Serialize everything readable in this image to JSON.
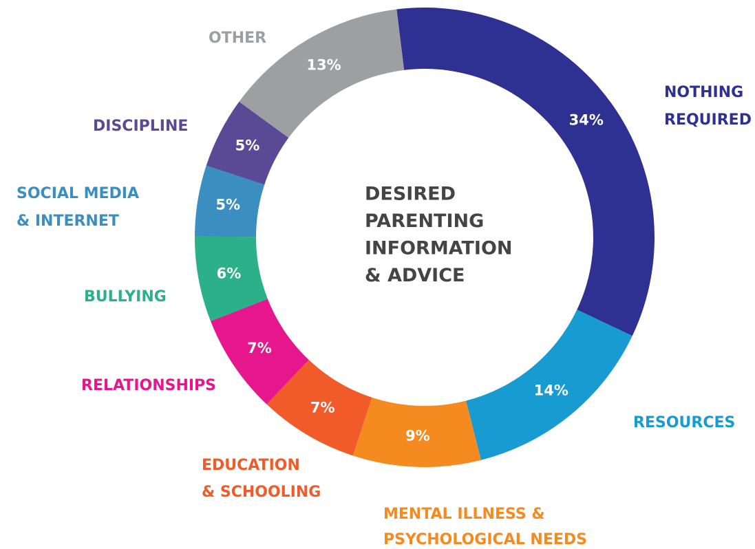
{
  "chart_data": {
    "type": "donut",
    "title": [
      "DESIRED",
      "PARENTING",
      "INFORMATION",
      "& ADVICE"
    ],
    "categories": [
      [
        "NOTHING",
        "REQUIRED"
      ],
      [
        "RESOURCES"
      ],
      [
        "MENTAL ILLNESS &",
        "PSYCHOLOGICAL NEEDS"
      ],
      [
        "EDUCATION",
        "& SCHOOLING"
      ],
      [
        "RELATIONSHIPS"
      ],
      [
        "BULLYING"
      ],
      [
        "SOCIAL MEDIA",
        "& INTERNET"
      ],
      [
        "DISCIPLINE"
      ],
      [
        "OTHER"
      ]
    ],
    "values": [
      34,
      14,
      9,
      7,
      7,
      6,
      5,
      5,
      13
    ],
    "value_labels": [
      "34%",
      "14%",
      "9%",
      "7%",
      "7%",
      "6%",
      "5%",
      "5%",
      "13%"
    ],
    "colors": [
      "#2e3192",
      "#179bd1",
      "#f58a21",
      "#f15a29",
      "#e6178c",
      "#2bb08a",
      "#3a8fc0",
      "#5a4a96",
      "#9d9fa2"
    ]
  }
}
